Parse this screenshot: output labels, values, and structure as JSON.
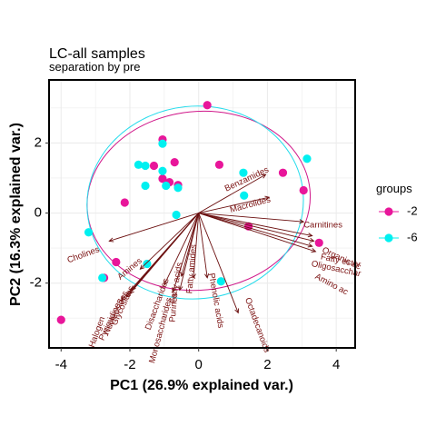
{
  "chart_data": {
    "type": "scatter",
    "title": "LC-all samples",
    "subtitle": "separation by pre",
    "xlabel": "PC1 (26.9% explained var.)",
    "ylabel": "PC2 (16.3% explained var.)",
    "xlim": [
      -4.35,
      4.55
    ],
    "ylim": [
      -3.85,
      3.8
    ],
    "xticks": [
      -4,
      -2,
      0,
      2,
      4
    ],
    "yticks": [
      -2,
      0,
      2
    ],
    "grid": true,
    "legend": {
      "title": "groups",
      "position": "right"
    },
    "series": [
      {
        "name": "-2",
        "color": "#e8169a",
        "points": [
          [
            0.25,
            3.08
          ],
          [
            -1.05,
            2.1
          ],
          [
            -0.7,
            1.45
          ],
          [
            0.6,
            1.38
          ],
          [
            -1.3,
            1.35
          ],
          [
            -1.05,
            0.98
          ],
          [
            -0.85,
            0.88
          ],
          [
            -0.6,
            0.8
          ],
          [
            -2.15,
            0.3
          ],
          [
            3.05,
            0.65
          ],
          [
            2.45,
            1.15
          ],
          [
            1.45,
            -0.38
          ],
          [
            3.5,
            -0.85
          ],
          [
            -2.4,
            -1.4
          ],
          [
            -2.75,
            -1.85
          ],
          [
            -4.0,
            -3.05
          ]
        ]
      },
      {
        "name": "-6",
        "color": "#00f0f0",
        "points": [
          [
            -1.05,
            1.98
          ],
          [
            -1.75,
            1.38
          ],
          [
            -1.55,
            1.35
          ],
          [
            -1.05,
            1.2
          ],
          [
            -1.55,
            0.78
          ],
          [
            -0.95,
            0.78
          ],
          [
            -0.6,
            0.72
          ],
          [
            -0.65,
            -0.05
          ],
          [
            1.3,
            1.15
          ],
          [
            1.32,
            0.5
          ],
          [
            3.15,
            1.55
          ],
          [
            -3.2,
            -0.55
          ],
          [
            -1.5,
            -1.45
          ],
          [
            -2.8,
            -1.85
          ],
          [
            0.65,
            -1.95
          ]
        ]
      }
    ],
    "ellipses": [
      {
        "group": "-2",
        "color": "#d0188a",
        "center": [
          0.0,
          0.35
        ],
        "semi_axes": [
          3.25,
          2.55
        ],
        "angle_deg": -6
      },
      {
        "group": "-6",
        "color": "#26dcec",
        "center": [
          -0.1,
          0.3
        ],
        "semi_axes": [
          3.15,
          2.75
        ],
        "angle_deg": -6
      }
    ],
    "loadings": [
      {
        "label": "Benzamides",
        "end": [
          1.95,
          1.1
        ],
        "angle": -25,
        "anchor": "middle",
        "label_pos": [
          1.4,
          0.96
        ]
      },
      {
        "label": "Macrolides",
        "end": [
          2.05,
          0.45
        ],
        "angle": -15,
        "anchor": "middle",
        "label_pos": [
          1.5,
          0.23
        ]
      },
      {
        "label": "Carnitines",
        "end": [
          3.05,
          -0.25
        ],
        "angle": 0,
        "anchor": "start",
        "label_pos": [
          3.05,
          -0.35
        ]
      },
      {
        "label": "Organic ac",
        "end": [
          3.3,
          -0.65
        ],
        "angle": 25,
        "anchor": "start",
        "label_pos": [
          3.6,
          -1.05
        ]
      },
      {
        "label": "Fatty ester",
        "end": [
          3.35,
          -0.8
        ],
        "angle": 12,
        "anchor": "start",
        "label_pos": [
          3.55,
          -1.25
        ]
      },
      {
        "label": "Oligosacchar",
        "end": [
          3.3,
          -0.95
        ],
        "angle": 12,
        "anchor": "start",
        "label_pos": [
          3.28,
          -1.45
        ]
      },
      {
        "label": "Amino ac",
        "end": [
          3.4,
          -1.1
        ],
        "angle": 28,
        "anchor": "start",
        "label_pos": [
          3.4,
          -1.8
        ]
      },
      {
        "label": "Cholines",
        "end": [
          -2.6,
          -0.8
        ],
        "angle": -20,
        "anchor": "middle",
        "label_pos": [
          -3.35,
          -1.2
        ]
      },
      {
        "label": "Amines",
        "end": [
          -1.7,
          -1.6
        ],
        "angle": -40,
        "anchor": "middle",
        "label_pos": [
          -2.0,
          -1.6
        ]
      },
      {
        "label": "Glycosides",
        "end": [
          -1.95,
          -2.2
        ],
        "angle": -65,
        "anchor": "middle",
        "label_pos": [
          -2.2,
          -2.65
        ]
      },
      {
        "label": "Nucleosides",
        "end": [
          -2.0,
          -2.3
        ],
        "angle": -65,
        "anchor": "middle",
        "label_pos": [
          -2.4,
          -2.85
        ]
      },
      {
        "label": "Pyrimidines",
        "end": [
          -2.1,
          -2.4
        ],
        "angle": -65,
        "anchor": "middle",
        "label_pos": [
          -2.55,
          -3.05
        ]
      },
      {
        "label": "Halogen",
        "end": [
          -2.25,
          -2.5
        ],
        "angle": -70,
        "anchor": "middle",
        "label_pos": [
          -2.95,
          -3.4
        ]
      },
      {
        "label": "Disaccharides",
        "end": [
          -1.0,
          -2.05
        ],
        "angle": -70,
        "anchor": "middle",
        "label_pos": [
          -1.2,
          -2.6
        ]
      },
      {
        "label": "Monosaccharides",
        "end": [
          -0.75,
          -2.25
        ],
        "angle": -75,
        "anchor": "middle",
        "label_pos": [
          -1.1,
          -3.35
        ]
      },
      {
        "label": "Fatty acids",
        "end": [
          -0.5,
          -1.8
        ],
        "angle": -80,
        "anchor": "middle",
        "label_pos": [
          -0.65,
          -2.0
        ]
      },
      {
        "label": "Purines",
        "end": [
          -0.55,
          -2.2
        ],
        "angle": -85,
        "anchor": "middle",
        "label_pos": [
          -0.72,
          -2.7
        ]
      },
      {
        "label": "Fatty amides",
        "end": [
          -0.15,
          -1.85
        ],
        "angle": -85,
        "anchor": "middle",
        "label_pos": [
          -0.2,
          -1.6
        ]
      },
      {
        "label": "Phenolic acids",
        "end": [
          0.25,
          -1.85
        ],
        "angle": 80,
        "anchor": "middle",
        "label_pos": [
          0.5,
          -2.5
        ]
      },
      {
        "label": "Octadecanoids",
        "end": [
          1.15,
          -2.85
        ],
        "angle": 70,
        "anchor": "middle",
        "label_pos": [
          1.7,
          -3.2
        ]
      }
    ]
  }
}
